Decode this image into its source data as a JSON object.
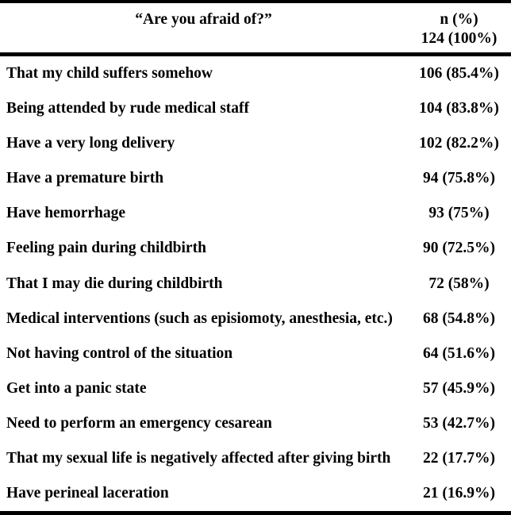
{
  "table": {
    "header": {
      "question": "“Are you afraid of?”",
      "stat_label": "n (%)",
      "stat_total": "124 (100%)"
    },
    "rows": [
      {
        "label": "That my child suffers somehow",
        "value": "106 (85.4%)"
      },
      {
        "label": "Being attended by rude medical staff",
        "value": "104 (83.8%)"
      },
      {
        "label": "Have a very long delivery",
        "value": "102 (82.2%)"
      },
      {
        "label": "Have a premature birth",
        "value": "94 (75.8%)"
      },
      {
        "label": "Have hemorrhage",
        "value": "93 (75%)"
      },
      {
        "label": "Feeling pain during childbirth",
        "value": "90 (72.5%)"
      },
      {
        "label": "That I may die during childbirth",
        "value": "72 (58%)"
      },
      {
        "label": "Medical interventions (such as episiomoty, anesthesia, etc.)",
        "value": "68 (54.8%)"
      },
      {
        "label": "Not having control of the situation",
        "value": "64 (51.6%)"
      },
      {
        "label": "Get into a panic state",
        "value": "57 (45.9%)"
      },
      {
        "label": "Need to perform an emergency cesarean",
        "value": "53 (42.7%)"
      },
      {
        "label": "That my sexual life is negatively affected after giving birth",
        "value": "22 (17.7%)"
      },
      {
        "label": "Have perineal laceration",
        "value": "21 (16.9%)"
      }
    ],
    "sample_size": 124,
    "colors": {
      "text": "#000000",
      "background": "#ffffff",
      "rule": "#000000"
    }
  }
}
